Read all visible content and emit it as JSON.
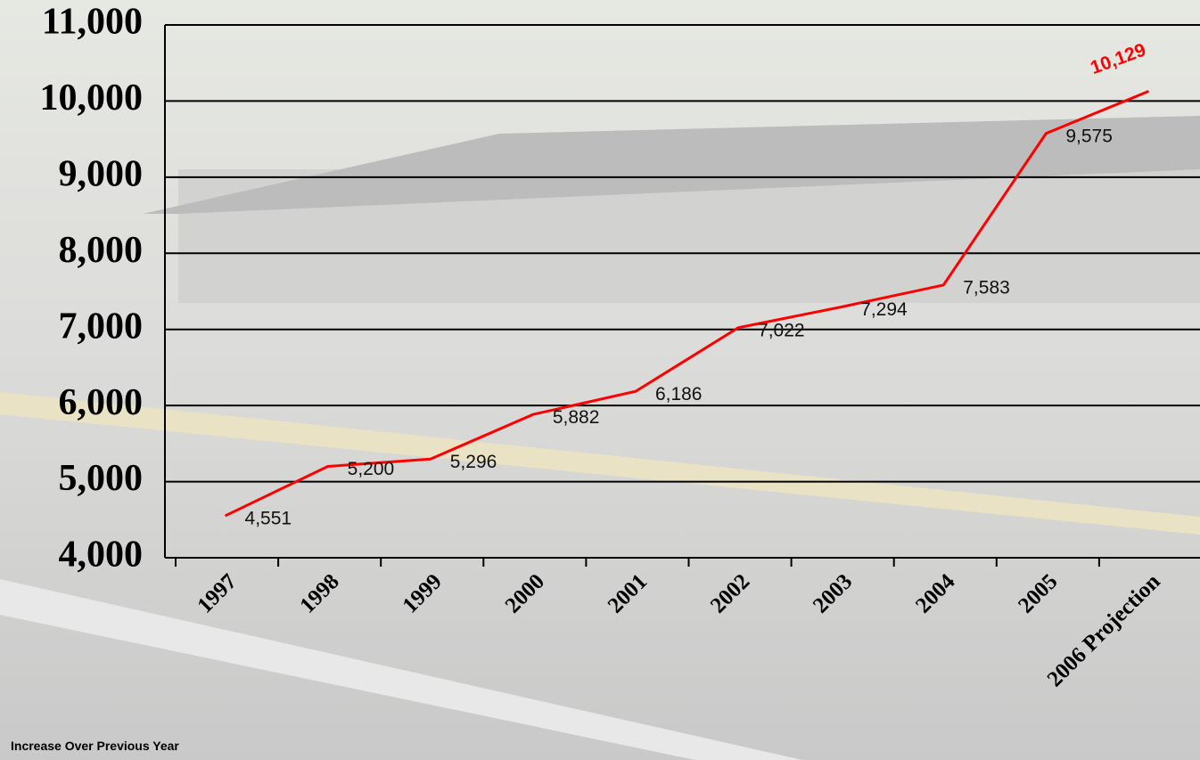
{
  "chart_data": {
    "type": "line",
    "categories": [
      "1997",
      "1998",
      "1999",
      "2000",
      "2001",
      "2002",
      "2003",
      "2004",
      "2005",
      "2006 Projection"
    ],
    "series": [
      {
        "color": "#ff0000",
        "values": [
          4551,
          5200,
          5296,
          5882,
          6186,
          7022,
          7294,
          7583,
          9575,
          10129
        ],
        "value_labels": [
          "4,551",
          "5,200",
          "5,296",
          "5,882",
          "6,186",
          "7,022",
          "7,294",
          "7,583",
          "9,575",
          "10,129"
        ]
      }
    ],
    "ylim": [
      4000,
      11000
    ],
    "yticks": [
      {
        "value": 4000,
        "label": "4,000"
      },
      {
        "value": 5000,
        "label": "5,000"
      },
      {
        "value": 6000,
        "label": "6,000"
      },
      {
        "value": 7000,
        "label": "7,000"
      },
      {
        "value": 8000,
        "label": "8,000"
      },
      {
        "value": 9000,
        "label": "9,000"
      },
      {
        "value": 10000,
        "label": "10,000"
      },
      {
        "value": 11000,
        "label": "11,000"
      }
    ],
    "grid": true,
    "footnote": "Increase Over Previous Year"
  }
}
